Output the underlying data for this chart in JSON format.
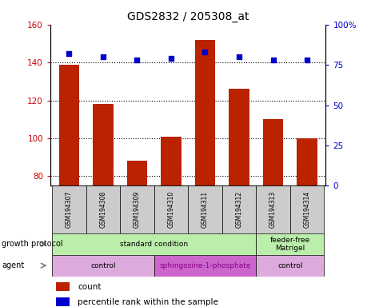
{
  "title": "GDS2832 / 205308_at",
  "samples": [
    "GSM194307",
    "GSM194308",
    "GSM194309",
    "GSM194310",
    "GSM194311",
    "GSM194312",
    "GSM194313",
    "GSM194314"
  ],
  "counts": [
    139,
    118,
    88,
    101,
    152,
    126,
    110,
    100
  ],
  "percentile_ranks": [
    82,
    80,
    78,
    79,
    83,
    80,
    78,
    78
  ],
  "ylim_left": [
    75,
    160
  ],
  "ylim_right": [
    0,
    100
  ],
  "yticks_left": [
    80,
    100,
    120,
    140,
    160
  ],
  "yticks_right": [
    0,
    25,
    50,
    75,
    100
  ],
  "ytick_labels_right": [
    "0",
    "25",
    "50",
    "75",
    "100%"
  ],
  "bar_color": "#bb2200",
  "scatter_color": "#0000cc",
  "bar_bottom": 75,
  "growth_protocol_groups": [
    {
      "label": "standard condition",
      "start": 0,
      "end": 6,
      "color": "#bbeeaa"
    },
    {
      "label": "feeder-free\nMatrigel",
      "start": 6,
      "end": 8,
      "color": "#bbeeaa"
    }
  ],
  "agent_groups": [
    {
      "label": "control",
      "start": 0,
      "end": 3,
      "color": "#ddaadd"
    },
    {
      "label": "sphingosine-1-phosphate",
      "start": 3,
      "end": 6,
      "color": "#cc66cc"
    },
    {
      "label": "control",
      "start": 6,
      "end": 8,
      "color": "#ddaadd"
    }
  ],
  "legend_count_label": "count",
  "legend_percentile_label": "percentile rank within the sample",
  "growth_protocol_label": "growth protocol",
  "agent_label": "agent",
  "background_color": "#ffffff",
  "plot_bg_color": "#ffffff",
  "tick_label_color_left": "#cc0000",
  "tick_label_color_right": "#0000cc",
  "sample_box_color": "#cccccc",
  "dotted_grid_ticks": [
    80,
    100,
    120,
    140
  ],
  "agent_sphingo_color": "#880088"
}
